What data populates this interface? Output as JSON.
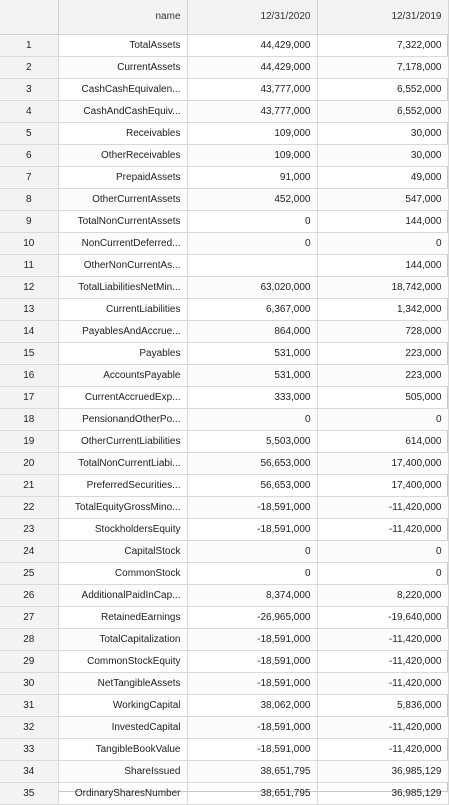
{
  "header": {
    "index_label": "",
    "name_label": "name",
    "col1_label": "12/31/2020",
    "col2_label": "12/31/2019"
  },
  "rows": [
    {
      "idx": "1",
      "name": "TotalAssets",
      "v1": "44,429,000",
      "v2": "7,322,000"
    },
    {
      "idx": "2",
      "name": "CurrentAssets",
      "v1": "44,429,000",
      "v2": "7,178,000"
    },
    {
      "idx": "3",
      "name": "CashCashEquivalen...",
      "v1": "43,777,000",
      "v2": "6,552,000"
    },
    {
      "idx": "4",
      "name": "CashAndCashEquiv...",
      "v1": "43,777,000",
      "v2": "6,552,000"
    },
    {
      "idx": "5",
      "name": "Receivables",
      "v1": "109,000",
      "v2": "30,000"
    },
    {
      "idx": "6",
      "name": "OtherReceivables",
      "v1": "109,000",
      "v2": "30,000"
    },
    {
      "idx": "7",
      "name": "PrepaidAssets",
      "v1": "91,000",
      "v2": "49,000"
    },
    {
      "idx": "8",
      "name": "OtherCurrentAssets",
      "v1": "452,000",
      "v2": "547,000"
    },
    {
      "idx": "9",
      "name": "TotalNonCurrentAssets",
      "v1": "0",
      "v2": "144,000"
    },
    {
      "idx": "10",
      "name": "NonCurrentDeferred...",
      "v1": "0",
      "v2": "0"
    },
    {
      "idx": "11",
      "name": "OtherNonCurrentAs...",
      "v1": "",
      "v2": "144,000"
    },
    {
      "idx": "12",
      "name": "TotalLiabilitiesNetMin...",
      "v1": "63,020,000",
      "v2": "18,742,000"
    },
    {
      "idx": "13",
      "name": "CurrentLiabilities",
      "v1": "6,367,000",
      "v2": "1,342,000"
    },
    {
      "idx": "14",
      "name": "PayablesAndAccrue...",
      "v1": "864,000",
      "v2": "728,000"
    },
    {
      "idx": "15",
      "name": "Payables",
      "v1": "531,000",
      "v2": "223,000"
    },
    {
      "idx": "16",
      "name": "AccountsPayable",
      "v1": "531,000",
      "v2": "223,000"
    },
    {
      "idx": "17",
      "name": "CurrentAccruedExp...",
      "v1": "333,000",
      "v2": "505,000"
    },
    {
      "idx": "18",
      "name": "PensionandOtherPo...",
      "v1": "0",
      "v2": "0"
    },
    {
      "idx": "19",
      "name": "OtherCurrentLiabilities",
      "v1": "5,503,000",
      "v2": "614,000"
    },
    {
      "idx": "20",
      "name": "TotalNonCurrentLiabi...",
      "v1": "56,653,000",
      "v2": "17,400,000"
    },
    {
      "idx": "21",
      "name": "PreferredSecurities...",
      "v1": "56,653,000",
      "v2": "17,400,000"
    },
    {
      "idx": "22",
      "name": "TotalEquityGrossMino...",
      "v1": "-18,591,000",
      "v2": "-11,420,000"
    },
    {
      "idx": "23",
      "name": "StockholdersEquity",
      "v1": "-18,591,000",
      "v2": "-11,420,000"
    },
    {
      "idx": "24",
      "name": "CapitalStock",
      "v1": "0",
      "v2": "0"
    },
    {
      "idx": "25",
      "name": "CommonStock",
      "v1": "0",
      "v2": "0"
    },
    {
      "idx": "26",
      "name": "AdditionalPaidInCap...",
      "v1": "8,374,000",
      "v2": "8,220,000"
    },
    {
      "idx": "27",
      "name": "RetainedEarnings",
      "v1": "-26,965,000",
      "v2": "-19,640,000"
    },
    {
      "idx": "28",
      "name": "TotalCapitalization",
      "v1": "-18,591,000",
      "v2": "-11,420,000"
    },
    {
      "idx": "29",
      "name": "CommonStockEquity",
      "v1": "-18,591,000",
      "v2": "-11,420,000"
    },
    {
      "idx": "30",
      "name": "NetTangibleAssets",
      "v1": "-18,591,000",
      "v2": "-11,420,000"
    },
    {
      "idx": "31",
      "name": "WorkingCapital",
      "v1": "38,062,000",
      "v2": "5,836,000"
    },
    {
      "idx": "32",
      "name": "InvestedCapital",
      "v1": "-18,591,000",
      "v2": "-11,420,000"
    },
    {
      "idx": "33",
      "name": "TangibleBookValue",
      "v1": "-18,591,000",
      "v2": "-11,420,000"
    },
    {
      "idx": "34",
      "name": "ShareIssued",
      "v1": "38,651,795",
      "v2": "36,985,129"
    },
    {
      "idx": "35",
      "name": "OrdinarySharesNumber",
      "v1": "38,651,795",
      "v2": "36,985,129"
    }
  ]
}
